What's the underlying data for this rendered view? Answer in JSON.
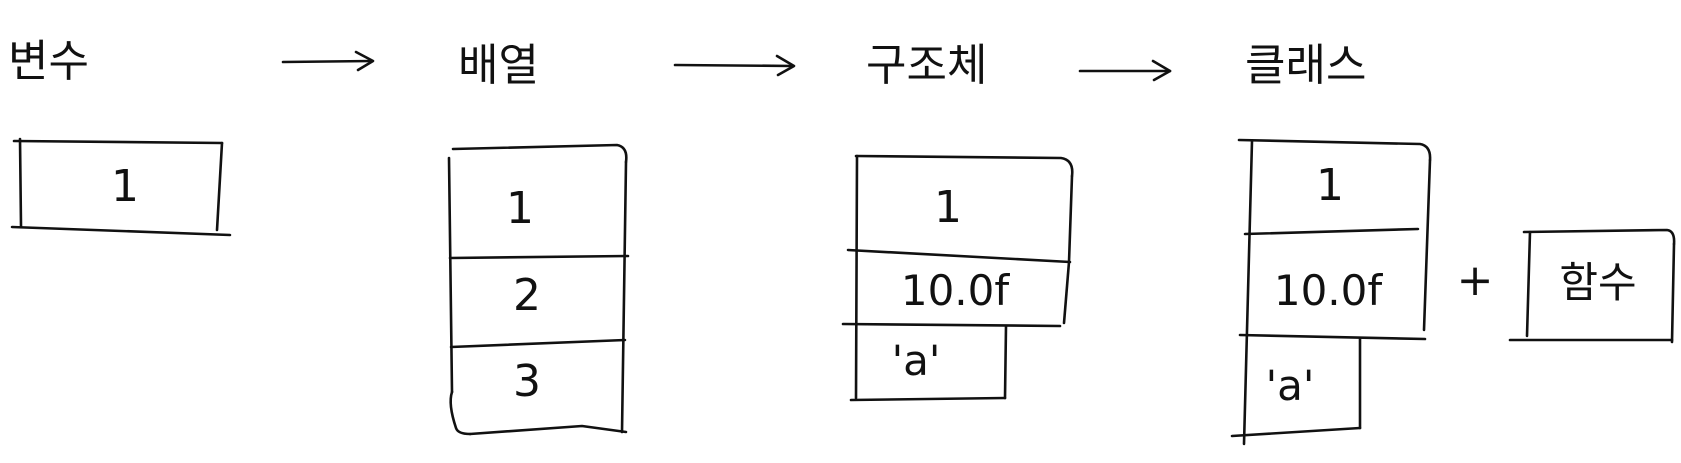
{
  "stages": [
    {
      "title": "변수",
      "cells": [
        "1"
      ]
    },
    {
      "title": "배열",
      "cells": [
        "1",
        "2",
        "3"
      ]
    },
    {
      "title": "구조체",
      "cells": [
        "1",
        "10.0f",
        "'a'"
      ]
    },
    {
      "title": "클래스",
      "cells": [
        "1",
        "10.0f",
        "'a'"
      ],
      "plus": "+",
      "function_label": "함수"
    }
  ]
}
